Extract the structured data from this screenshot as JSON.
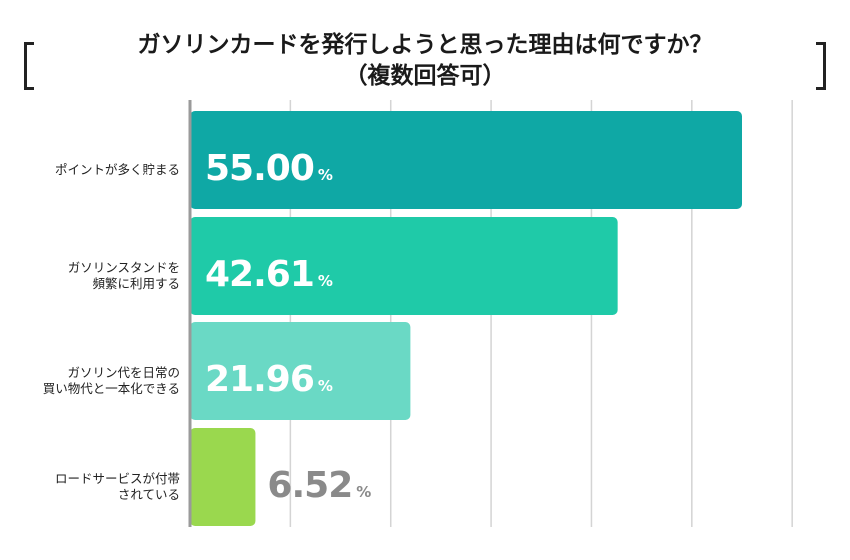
{
  "chart_data": {
    "type": "bar",
    "orientation": "horizontal",
    "title_lines": [
      "ガソリンカードを発行しようと思った理由は何ですか？",
      "（複数回答可）"
    ],
    "categories": [
      [
        "ポイントが多く貯まる"
      ],
      [
        "ガソリンスタンドを",
        "頻繁に利用する"
      ],
      [
        "ガソリン代を日常の",
        "買い物代と一本化できる"
      ],
      [
        "ロードサービスが付帯",
        "されている"
      ]
    ],
    "values": [
      55.0,
      42.61,
      21.96,
      6.52
    ],
    "value_labels": [
      "55.00",
      "42.61",
      "21.96",
      "6.52"
    ],
    "unit": "%",
    "xlim": [
      0,
      60
    ],
    "grid": true,
    "bar_colors": [
      "#0fa8a5",
      "#1fcaa8",
      "#6ad9c5",
      "#9ad84e"
    ]
  }
}
